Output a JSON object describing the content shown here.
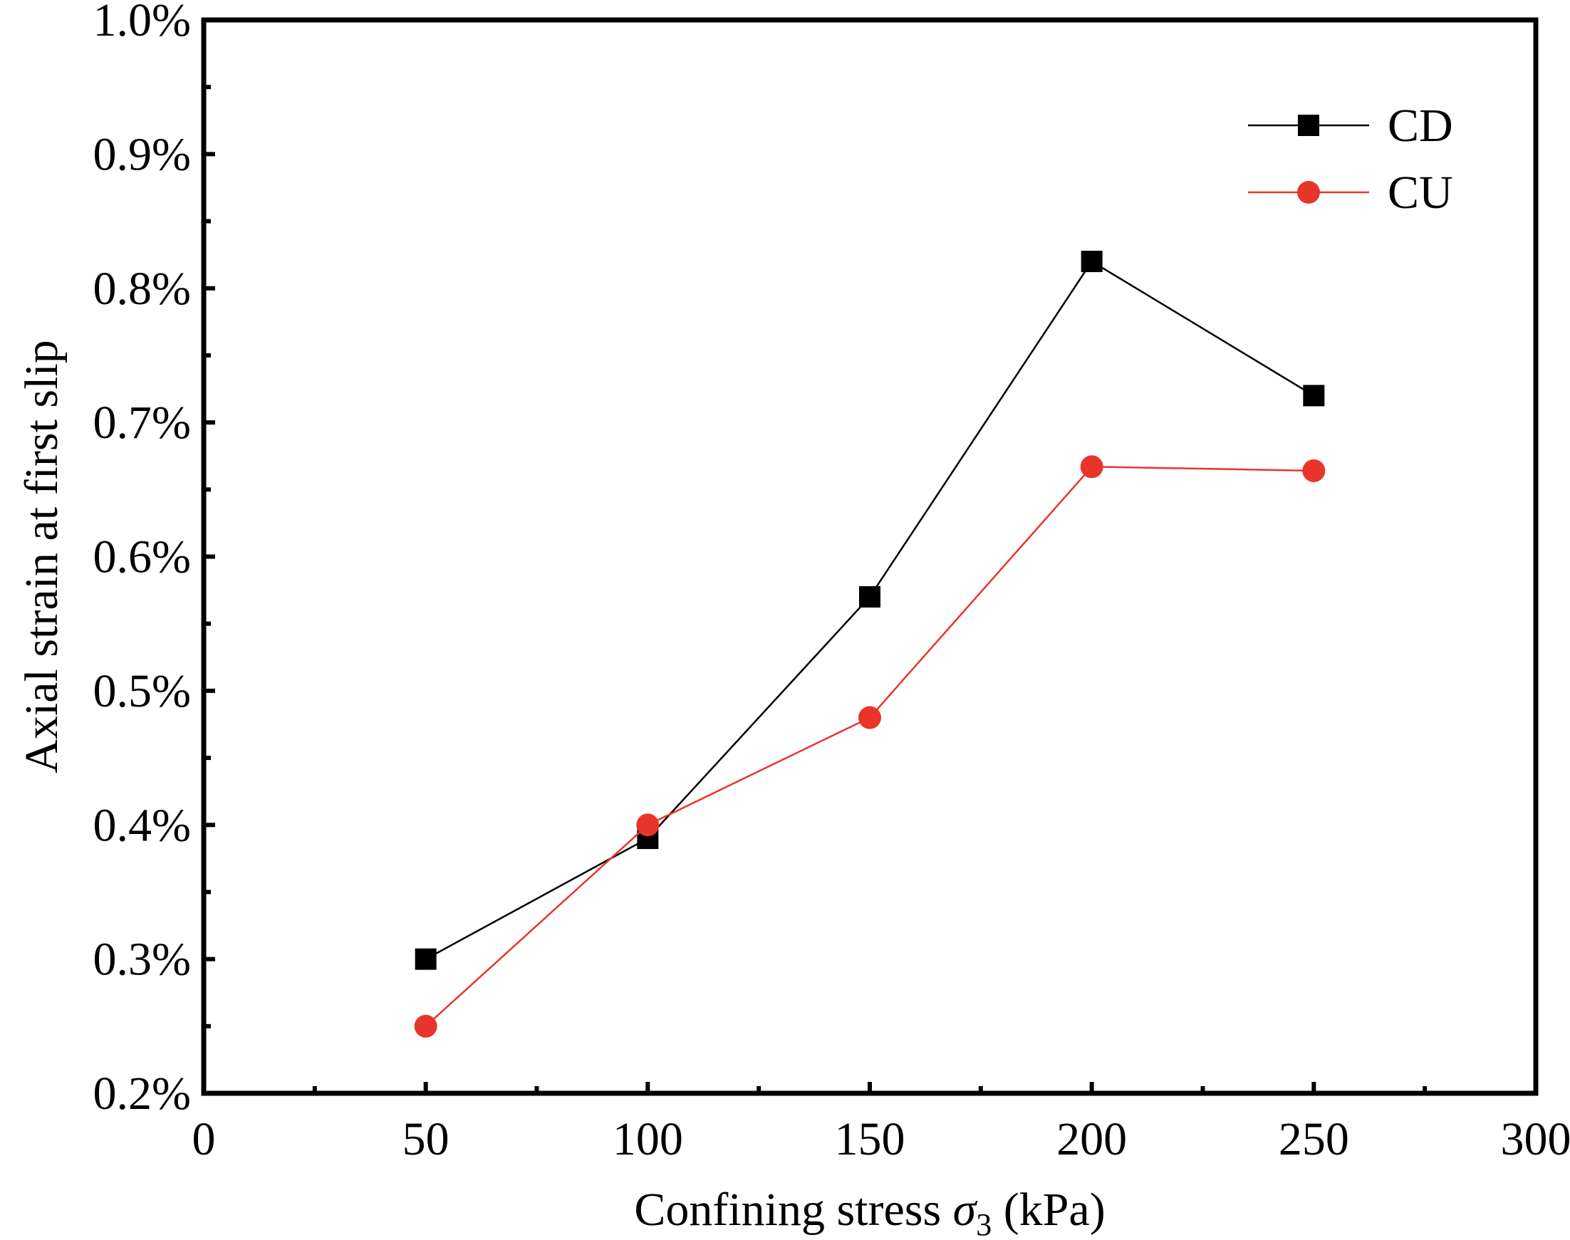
{
  "chart_data": {
    "type": "line",
    "xlabel": {
      "prefix": "Confining stress ",
      "symbol": "σ",
      "subscript": "3",
      "suffix": " (kPa)"
    },
    "ylabel": "Axial strain at first slip",
    "xlim": [
      0,
      300
    ],
    "ylim": [
      0.2,
      1.0
    ],
    "x_ticks": [
      0,
      50,
      100,
      150,
      200,
      250,
      300
    ],
    "x_tick_labels": [
      "0",
      "50",
      "100",
      "150",
      "200",
      "250",
      "300"
    ],
    "y_ticks": [
      0.2,
      0.3,
      0.4,
      0.5,
      0.6,
      0.7,
      0.8,
      0.9,
      1.0
    ],
    "y_tick_labels": [
      "0.2%",
      "0.3%",
      "0.4%",
      "0.5%",
      "0.6%",
      "0.7%",
      "0.8%",
      "0.9%",
      "1.0%"
    ],
    "x_minor_step": 25,
    "y_minor_step": 0.05,
    "grid": false,
    "legend_position": "top-right",
    "series": [
      {
        "name": "CD",
        "marker": "square",
        "color": "#000000",
        "x": [
          50,
          100,
          150,
          200,
          250
        ],
        "y": [
          0.3,
          0.39,
          0.57,
          0.82,
          0.72
        ]
      },
      {
        "name": "CU",
        "marker": "circle",
        "color": "#e8352c",
        "x": [
          50,
          100,
          150,
          200,
          250
        ],
        "y": [
          0.25,
          0.4,
          0.48,
          0.667,
          0.664
        ]
      }
    ]
  }
}
